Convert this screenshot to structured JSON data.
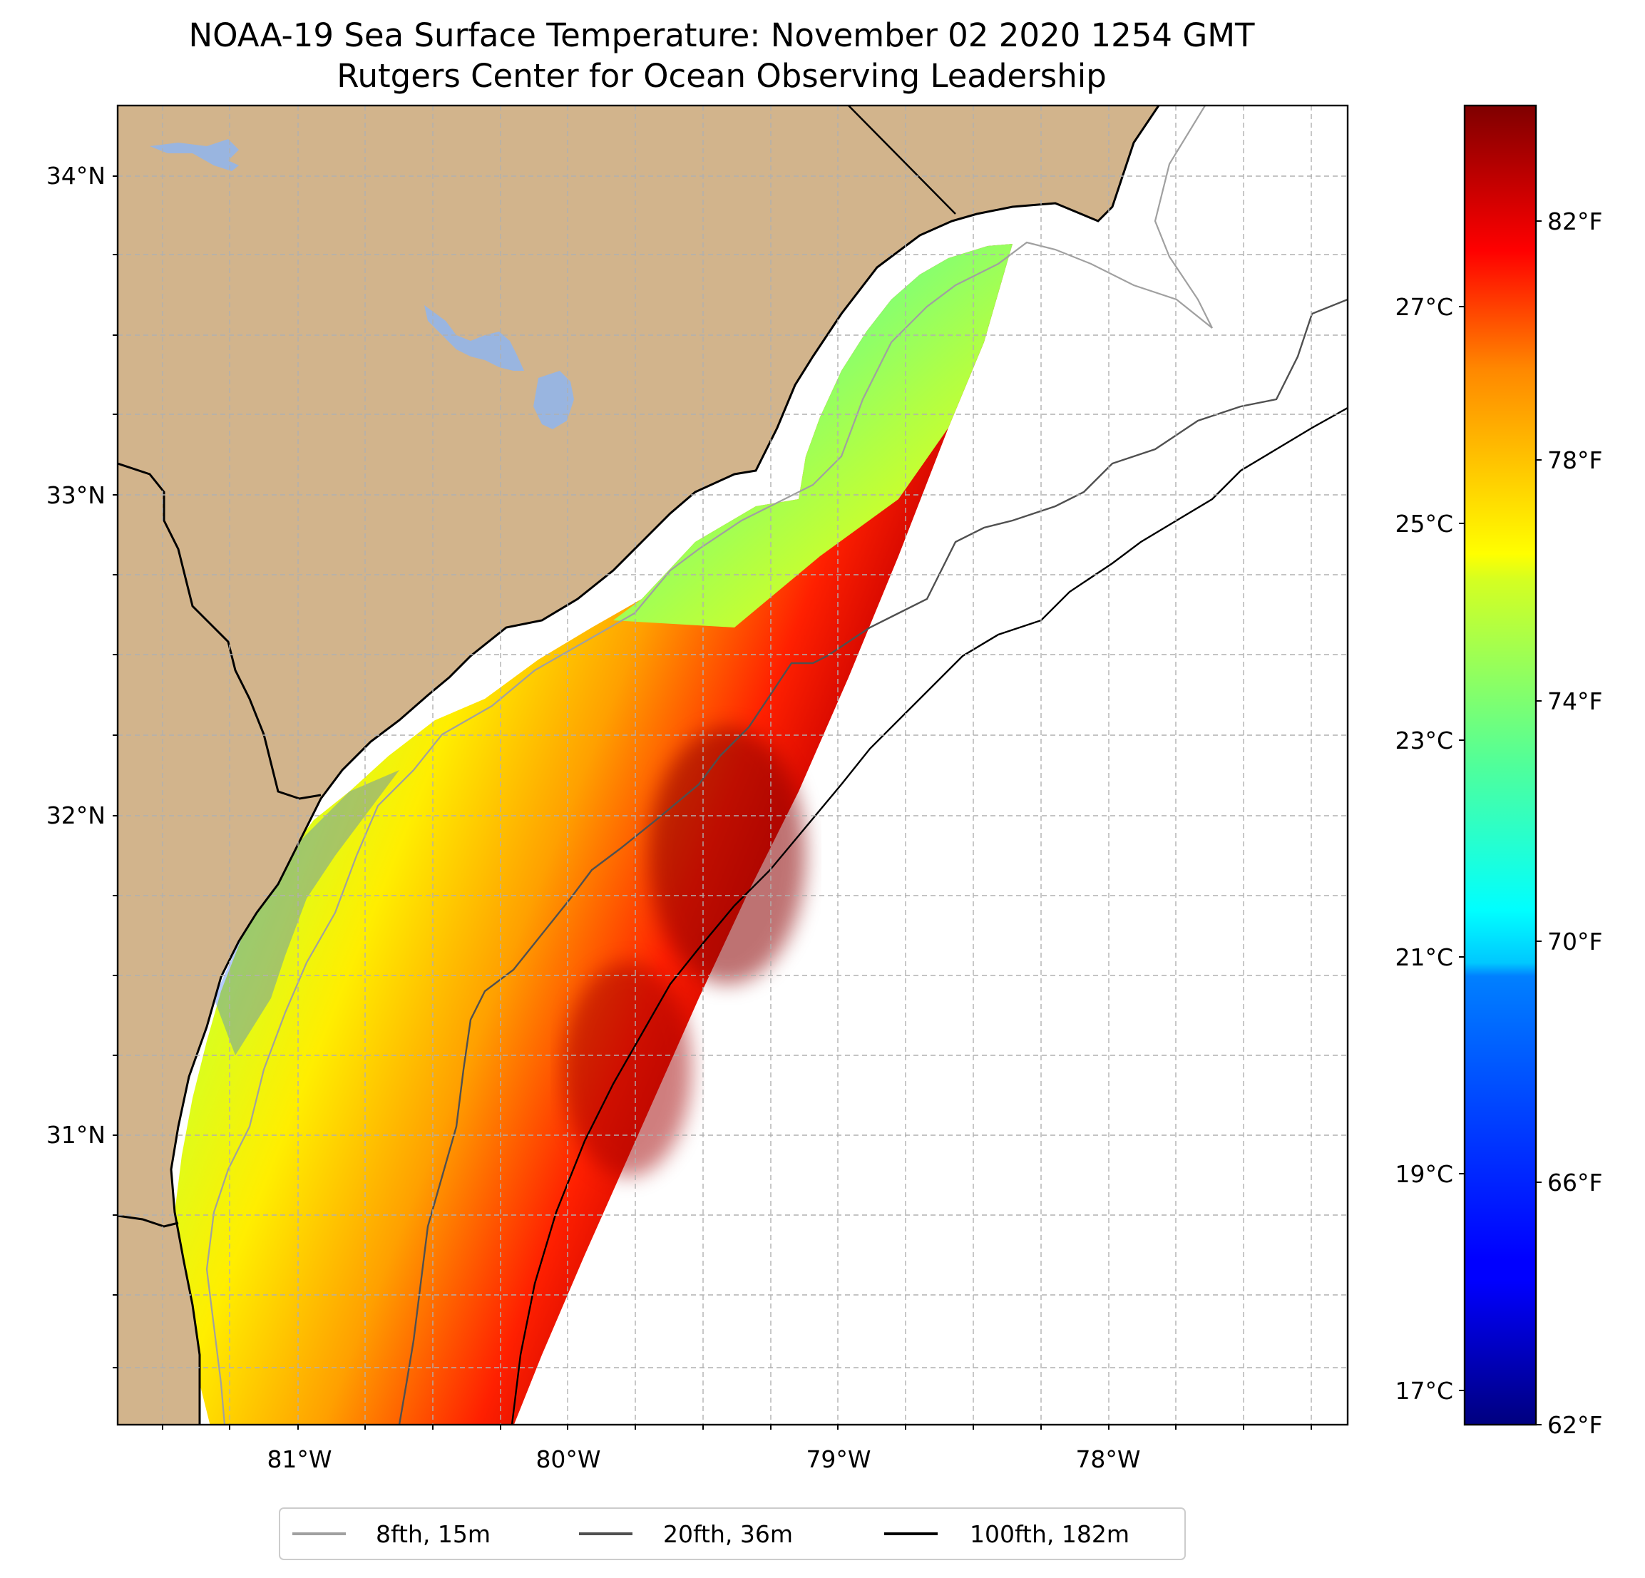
{
  "title": "NOAA-19 Sea Surface Temperature: November 02 2020 1254 GMT",
  "subtitle": "Rutgers Center for Ocean Observing Leadership",
  "map": {
    "lat_labels": [
      {
        "text": "34°N",
        "value": 34
      },
      {
        "text": "33°N",
        "value": 33
      },
      {
        "text": "32°N",
        "value": 32
      },
      {
        "text": "31°N",
        "value": 31
      }
    ],
    "lon_labels": [
      {
        "text": "81°W",
        "value": -81
      },
      {
        "text": "80°W",
        "value": -80
      },
      {
        "text": "79°W",
        "value": -79
      },
      {
        "text": "78°W",
        "value": -78
      }
    ],
    "extent": {
      "lon": [
        -81.67,
        -77.17
      ],
      "lat": [
        30.07,
        34.22
      ]
    },
    "colors": {
      "land": "#d2b48c",
      "lakes": "#99b5e0",
      "ocean_nodata": "#ffffff",
      "coast": "#000000"
    }
  },
  "colorbar": {
    "colormap": "jet",
    "fahrenheit_ticks": [
      {
        "text": "82°F",
        "value": 82
      },
      {
        "text": "78°F",
        "value": 78
      },
      {
        "text": "74°F",
        "value": 74
      },
      {
        "text": "70°F",
        "value": 70
      },
      {
        "text": "66°F",
        "value": 66
      },
      {
        "text": "62°F",
        "value": 62
      }
    ],
    "celsius_ticks": [
      {
        "text": "27°C",
        "value": 27
      },
      {
        "text": "25°C",
        "value": 25
      },
      {
        "text": "23°C",
        "value": 23
      },
      {
        "text": "21°C",
        "value": 21
      },
      {
        "text": "19°C",
        "value": 19
      },
      {
        "text": "17°C",
        "value": 17
      }
    ],
    "range_f": [
      61.8,
      84.2
    ]
  },
  "legend": {
    "items": [
      {
        "label": "8fth, 15m",
        "color": "#a0a0a0"
      },
      {
        "label": "20fth, 36m",
        "color": "#505050"
      },
      {
        "label": "100fth, 182m",
        "color": "#000000"
      }
    ]
  }
}
